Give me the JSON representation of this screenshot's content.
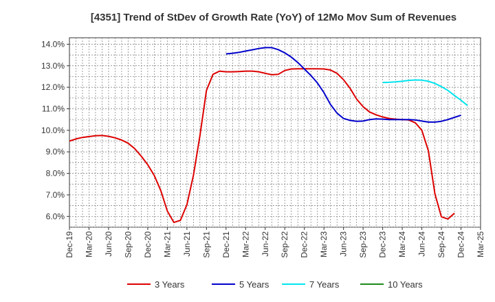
{
  "chart_data": {
    "type": "line",
    "title": "[4351]  Trend of StDev of Growth Rate (YoY) of 12Mo Mov Sum of Revenues",
    "xlabel": "",
    "ylabel": "",
    "ylim": [
      5.5,
      14.3
    ],
    "y_ticks": [
      6.0,
      7.0,
      8.0,
      9.0,
      10.0,
      11.0,
      12.0,
      13.0,
      14.0
    ],
    "y_tick_labels": [
      "6.0%",
      "7.0%",
      "8.0%",
      "9.0%",
      "10.0%",
      "11.0%",
      "12.0%",
      "13.0%",
      "14.0%"
    ],
    "x_tick_labels": [
      "Dec-19",
      "Mar-20",
      "Jun-20",
      "Sep-20",
      "Dec-20",
      "Mar-21",
      "Jun-21",
      "Sep-21",
      "Dec-21",
      "Mar-22",
      "Jun-22",
      "Sep-22",
      "Dec-22",
      "Mar-23",
      "Jun-23",
      "Sep-23",
      "Dec-23",
      "Mar-24",
      "Jun-24",
      "Sep-24",
      "Dec-24",
      "Mar-25"
    ],
    "x_range_months": [
      0,
      63
    ],
    "grid": true,
    "legend_position": "bottom",
    "series": [
      {
        "name": "3 Years",
        "color": "#dd0000",
        "start_month": 0,
        "values": [
          9.5,
          9.6,
          9.67,
          9.71,
          9.75,
          9.76,
          9.72,
          9.65,
          9.55,
          9.4,
          9.15,
          8.8,
          8.4,
          7.9,
          7.2,
          6.25,
          5.72,
          5.82,
          6.55,
          7.9,
          9.75,
          11.85,
          12.6,
          12.75,
          12.72,
          12.72,
          12.73,
          12.75,
          12.75,
          12.72,
          12.65,
          12.58,
          12.6,
          12.78,
          12.85,
          12.86,
          12.86,
          12.86,
          12.86,
          12.85,
          12.8,
          12.65,
          12.35,
          11.95,
          11.45,
          11.1,
          10.85,
          10.72,
          10.62,
          10.55,
          10.52,
          10.5,
          10.48,
          10.35,
          10.0,
          9.05,
          7.05,
          5.98,
          5.88,
          6.15
        ]
      },
      {
        "name": "5 Years",
        "color": "#0000cc",
        "start_month": 24,
        "values": [
          13.55,
          13.58,
          13.62,
          13.68,
          13.74,
          13.8,
          13.84,
          13.84,
          13.75,
          13.6,
          13.4,
          13.15,
          12.85,
          12.55,
          12.2,
          11.75,
          11.2,
          10.8,
          10.55,
          10.46,
          10.42,
          10.43,
          10.5,
          10.53,
          10.52,
          10.5,
          10.5,
          10.5,
          10.5,
          10.48,
          10.43,
          10.38,
          10.38,
          10.42,
          10.5,
          10.6,
          10.7
        ]
      },
      {
        "name": "7 Years",
        "color": "#00e5ee",
        "start_month": 48,
        "values": [
          12.22,
          12.23,
          12.25,
          12.28,
          12.32,
          12.34,
          12.33,
          12.28,
          12.18,
          12.03,
          11.85,
          11.62,
          11.4,
          11.15
        ]
      },
      {
        "name": "10 Years",
        "color": "#1a8a1a",
        "start_month": 48,
        "values": []
      }
    ]
  }
}
